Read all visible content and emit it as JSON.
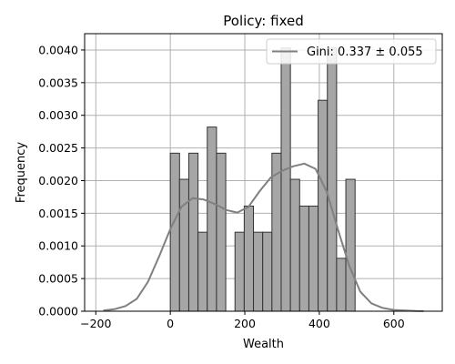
{
  "chart_data": {
    "type": "histogram",
    "title": "Policy: fixed",
    "xlabel": "Wealth",
    "ylabel": "Frequency",
    "xlim": [
      -230,
      730
    ],
    "ylim": [
      0,
      0.00425
    ],
    "xticks": [
      -200,
      0,
      200,
      400,
      600
    ],
    "xtick_labels": [
      "−200",
      "0",
      "200",
      "400",
      "600"
    ],
    "yticks": [
      0,
      0.0005,
      0.001,
      0.0015,
      0.002,
      0.0025,
      0.003,
      0.0035,
      0.004
    ],
    "ytick_labels": [
      "0.0000",
      "0.0005",
      "0.0010",
      "0.0015",
      "0.0020",
      "0.0025",
      "0.0030",
      "0.0035",
      "0.0040"
    ],
    "grid": true,
    "legend_position": "upper right",
    "colors": {
      "bar_fill": "#a6a6a6",
      "bar_edge": "#333333",
      "kde_line": "#808080",
      "grid": "#b0b0b0"
    },
    "bins": {
      "edges": [
        0,
        24.8,
        49.6,
        74.4,
        99.2,
        124.0,
        148.8,
        173.6,
        198.4,
        223.2,
        248.0,
        272.8,
        297.6,
        322.4,
        347.2,
        372.0,
        396.8,
        421.6,
        446.4,
        471.2,
        496.0
      ],
      "values": [
        0.00242,
        0.00202,
        0.00242,
        0.00121,
        0.00282,
        0.00242,
        0,
        0.00121,
        0.00161,
        0.00121,
        0.00121,
        0.00242,
        0.00403,
        0.00202,
        0.00161,
        0.00161,
        0.00323,
        0.00403,
        0.00081,
        0.00202
      ]
    },
    "series": [
      {
        "name": "Gini: 0.337 ± 0.055",
        "type": "line",
        "x": [
          -180,
          -150,
          -120,
          -90,
          -60,
          -30,
          0,
          30,
          60,
          90,
          120,
          150,
          180,
          210,
          240,
          270,
          300,
          330,
          360,
          390,
          420,
          450,
          480,
          510,
          540,
          570,
          600,
          630,
          660,
          680
        ],
        "y": [
          1e-05,
          3e-05,
          8e-05,
          0.00019,
          0.00045,
          0.00084,
          0.00126,
          0.0016,
          0.00173,
          0.00171,
          0.00164,
          0.00155,
          0.00151,
          0.0016,
          0.00184,
          0.00205,
          0.00215,
          0.00222,
          0.00226,
          0.00218,
          0.00183,
          0.00125,
          0.0007,
          0.0003,
          0.00012,
          5e-05,
          2e-05,
          1e-05,
          3e-06,
          1e-06
        ]
      }
    ]
  }
}
